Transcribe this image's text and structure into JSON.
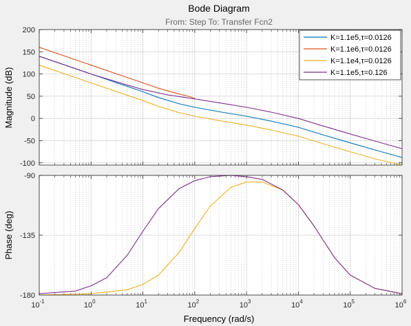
{
  "chart_data": {
    "type": "line",
    "title": "Bode Diagram",
    "subtitle": "From: Step  To: Transfer Fcn2",
    "xlabel": "Frequency  (rad/s)",
    "xscale": "log",
    "xlim": [
      0.1,
      1000000
    ],
    "x_ticks": [
      "10^-1",
      "10^0",
      "10^1",
      "10^2",
      "10^3",
      "10^4",
      "10^5",
      "10^6"
    ],
    "x_tick_values": [
      -1,
      0,
      1,
      2,
      3,
      4,
      5,
      6
    ],
    "x_tick_base": "10",
    "x_tick_exps": [
      "-1",
      "0",
      "1",
      "2",
      "3",
      "4",
      "5",
      "6"
    ],
    "grid": true,
    "legend_position": "top-right",
    "legend_entries": [
      {
        "label": "K=1.1e5,τ=0.0126",
        "color": "#0072bd"
      },
      {
        "label": "K=1.1e6,τ=0.0126",
        "color": "#d95319"
      },
      {
        "label": "K=1.1e4,τ=0.0126",
        "color": "#edb120"
      },
      {
        "label": "K=1.1e5,τ=0.126",
        "color": "#7e2f8e"
      }
    ],
    "magnitude": {
      "ylabel": "Magnitude (dB)",
      "ylim": [
        -105,
        200
      ],
      "y_ticks": [
        -100,
        -50,
        0,
        50,
        100,
        150,
        200
      ],
      "series": [
        {
          "name": "K=1.1e5,τ=0.0126",
          "color": "#0072bd",
          "x": [
            0.1,
            1,
            10,
            20,
            50,
            100,
            300,
            1000,
            3000,
            10000,
            30000,
            100000,
            300000,
            1000000
          ],
          "y": [
            140,
            100,
            60,
            47,
            33,
            25,
            15,
            5,
            -6,
            -20,
            -37,
            -55,
            -71,
            -88
          ]
        },
        {
          "name": "K=1.1e6,τ=0.0126",
          "color": "#d95319",
          "x": [
            0.1,
            1,
            10,
            20,
            50,
            80,
            100
          ],
          "y": [
            160,
            120,
            80,
            68,
            55,
            49,
            45
          ]
        },
        {
          "name": "K=1.1e4,τ=0.0126",
          "color": "#edb120",
          "x": [
            0.1,
            1,
            10,
            20,
            50,
            100,
            300,
            1000,
            3000,
            10000,
            30000,
            100000,
            300000,
            1000000
          ],
          "y": [
            120,
            80,
            40,
            27,
            13,
            5,
            -5,
            -15,
            -26,
            -40,
            -57,
            -75,
            -91,
            -108
          ]
        },
        {
          "name": "K=1.1e5,τ=0.126",
          "color": "#7e2f8e",
          "x": [
            0.1,
            1,
            5,
            10,
            30,
            100,
            300,
            1000,
            3000,
            10000,
            30000,
            100000,
            300000,
            1000000
          ],
          "y": [
            140,
            100,
            75,
            65,
            53,
            44,
            35,
            25,
            14,
            0,
            -17,
            -35,
            -51,
            -68
          ]
        }
      ]
    },
    "phase": {
      "ylabel": "Phase (deg)",
      "ylim": [
        -180,
        -90
      ],
      "y_ticks": [
        -180,
        -135,
        -90
      ],
      "series": [
        {
          "name": "K=1.1e4,τ=0.0126",
          "color": "#edb120",
          "x": [
            0.1,
            1,
            5,
            10,
            20,
            50,
            100,
            200,
            500,
            1000,
            2000,
            5000,
            10000,
            20000,
            50000,
            100000,
            300000,
            1000000
          ],
          "y": [
            -180,
            -179,
            -176,
            -172,
            -165,
            -148,
            -130,
            -113,
            -99,
            -95,
            -95,
            -101,
            -112,
            -128,
            -152,
            -165,
            -175,
            -179
          ]
        },
        {
          "name": "K=1.1e5,τ=0.126",
          "color": "#7e2f8e",
          "x": [
            0.1,
            0.5,
            1,
            2,
            5,
            10,
            20,
            50,
            100,
            200,
            500,
            1000,
            2000,
            5000,
            10000,
            20000,
            50000,
            100000,
            300000,
            1000000
          ],
          "y": [
            -179,
            -177,
            -173,
            -167,
            -150,
            -132,
            -115,
            -100,
            -94,
            -91,
            -90,
            -91,
            -93,
            -101,
            -112,
            -128,
            -152,
            -165,
            -175,
            -179
          ]
        }
      ]
    }
  }
}
